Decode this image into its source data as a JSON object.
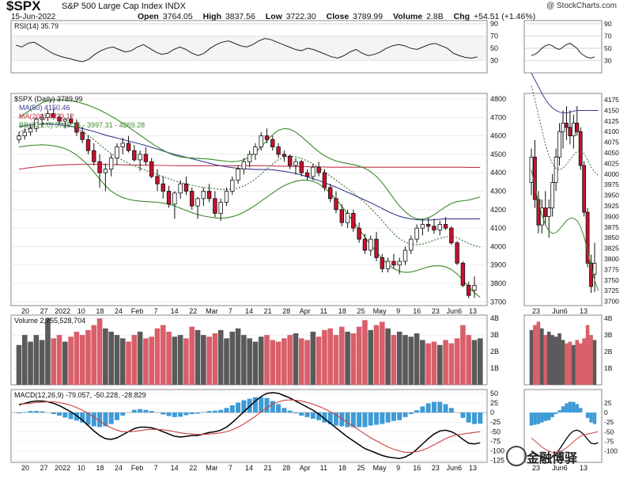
{
  "header": {
    "symbol": "$SPX",
    "name": "S&P 500 Large Cap Index  INDX",
    "credit": "@ StockCharts.com",
    "date": "15-Jun-2022",
    "open_label": "Open",
    "open": "3764.05",
    "high_label": "High",
    "high": "3837.56",
    "low_label": "Low",
    "low": "3722.30",
    "close_label": "Close",
    "close": "3789.99",
    "volume_label": "Volume",
    "volume": "2.8B",
    "chg_label": "Chg",
    "chg": "+54.51 (+1.46%)"
  },
  "watermark": "金融博驿",
  "colors": {
    "up": "#ffffff",
    "down": "#c8102e",
    "ma50": "#3b3b8f",
    "ma200": "#c0344a",
    "bb": "#3a8a2a",
    "bbmid": "#2e6e2e",
    "macd": "#000000",
    "signal": "#d04040",
    "hist": "#3d9bd6",
    "volup": "#5a5a5a",
    "voldown": "#d95f6a"
  },
  "chart_data": [
    {
      "type": "line",
      "title": "RSI(14) 35.79",
      "y_ticks": [
        30,
        50,
        70,
        90
      ],
      "ylim": [
        10,
        95
      ],
      "values": [
        55,
        52,
        58,
        60,
        54,
        48,
        42,
        38,
        35,
        33,
        30,
        28,
        32,
        40,
        46,
        50,
        52,
        48,
        44,
        46,
        52,
        56,
        50,
        44,
        40,
        42,
        48,
        52,
        48,
        42,
        38,
        42,
        50,
        56,
        60,
        62,
        58,
        54,
        52,
        56,
        62,
        66,
        64,
        60,
        56,
        52,
        48,
        46,
        50,
        48,
        44,
        40,
        36,
        34,
        38,
        44,
        48,
        42,
        38,
        40,
        44,
        50,
        54,
        56,
        54,
        50,
        48,
        52,
        56,
        58,
        54,
        50,
        42,
        38,
        35,
        34,
        36
      ]
    },
    {
      "type": "candlestick",
      "title": "$SPX (Daily) 3789.99",
      "legend": [
        "MA(50) 4150.46",
        "MA(200) 4429.12",
        "BB(20,2.0) 3725.35 - 3997.31 - 4269.28"
      ],
      "y_ticks": [
        3700,
        3750,
        3800,
        3850,
        3900,
        3950,
        4000,
        4050,
        4100,
        4150,
        4200,
        4250,
        4300,
        4350,
        4400,
        4450,
        4500,
        4550,
        4600,
        4650,
        4700,
        4750,
        4800
      ],
      "y_tick_labels": [
        "3700",
        "3800",
        "3900",
        "4000",
        "4100",
        "4200",
        "4300",
        "4400",
        "4500",
        "4600",
        "4700",
        "4800"
      ],
      "ylim": [
        3680,
        4830
      ],
      "x_labels": [
        "20",
        "27",
        "2022",
        "10",
        "18",
        "24",
        "Feb",
        "7",
        "14",
        "22",
        "Mar",
        "7",
        "14",
        "21",
        "28",
        "Apr",
        "11",
        "18",
        "25",
        "May",
        "9",
        "16",
        "23",
        "Jun6",
        "13"
      ],
      "ohlc": [
        [
          4580,
          4620,
          4560,
          4600
        ],
        [
          4600,
          4640,
          4580,
          4620
        ],
        [
          4620,
          4660,
          4600,
          4640
        ],
        [
          4640,
          4700,
          4620,
          4690
        ],
        [
          4690,
          4720,
          4650,
          4700
        ],
        [
          4700,
          4740,
          4680,
          4720
        ],
        [
          4720,
          4750,
          4690,
          4700
        ],
        [
          4700,
          4720,
          4660,
          4680
        ],
        [
          4680,
          4700,
          4640,
          4690
        ],
        [
          4690,
          4720,
          4660,
          4670
        ],
        [
          4670,
          4690,
          4600,
          4620
        ],
        [
          4620,
          4650,
          4560,
          4580
        ],
        [
          4580,
          4600,
          4500,
          4520
        ],
        [
          4520,
          4560,
          4440,
          4460
        ],
        [
          4460,
          4500,
          4320,
          4400
        ],
        [
          4400,
          4450,
          4300,
          4420
        ],
        [
          4420,
          4500,
          4380,
          4480
        ],
        [
          4480,
          4560,
          4440,
          4540
        ],
        [
          4540,
          4590,
          4500,
          4560
        ],
        [
          4560,
          4600,
          4510,
          4520
        ],
        [
          4520,
          4550,
          4460,
          4470
        ],
        [
          4470,
          4520,
          4410,
          4500
        ],
        [
          4500,
          4540,
          4440,
          4460
        ],
        [
          4460,
          4480,
          4370,
          4380
        ],
        [
          4380,
          4420,
          4300,
          4340
        ],
        [
          4340,
          4380,
          4260,
          4300
        ],
        [
          4300,
          4330,
          4210,
          4230
        ],
        [
          4230,
          4300,
          4150,
          4290
        ],
        [
          4290,
          4360,
          4260,
          4340
        ],
        [
          4340,
          4380,
          4280,
          4300
        ],
        [
          4300,
          4320,
          4200,
          4220
        ],
        [
          4220,
          4270,
          4150,
          4260
        ],
        [
          4260,
          4320,
          4220,
          4300
        ],
        [
          4300,
          4340,
          4240,
          4260
        ],
        [
          4260,
          4300,
          4160,
          4180
        ],
        [
          4180,
          4260,
          4140,
          4240
        ],
        [
          4240,
          4320,
          4220,
          4300
        ],
        [
          4300,
          4380,
          4280,
          4360
        ],
        [
          4360,
          4440,
          4340,
          4420
        ],
        [
          4420,
          4480,
          4390,
          4460
        ],
        [
          4460,
          4520,
          4430,
          4500
        ],
        [
          4500,
          4560,
          4470,
          4540
        ],
        [
          4540,
          4620,
          4520,
          4600
        ],
        [
          4600,
          4640,
          4560,
          4580
        ],
        [
          4580,
          4600,
          4520,
          4540
        ],
        [
          4540,
          4560,
          4480,
          4500
        ],
        [
          4500,
          4520,
          4460,
          4490
        ],
        [
          4490,
          4500,
          4420,
          4440
        ],
        [
          4440,
          4480,
          4390,
          4460
        ],
        [
          4460,
          4470,
          4380,
          4400
        ],
        [
          4400,
          4420,
          4360,
          4380
        ],
        [
          4380,
          4450,
          4360,
          4430
        ],
        [
          4430,
          4460,
          4380,
          4400
        ],
        [
          4400,
          4420,
          4300,
          4320
        ],
        [
          4320,
          4340,
          4240,
          4260
        ],
        [
          4260,
          4300,
          4180,
          4200
        ],
        [
          4200,
          4230,
          4110,
          4130
        ],
        [
          4130,
          4200,
          4100,
          4180
        ],
        [
          4180,
          4200,
          4080,
          4100
        ],
        [
          4100,
          4130,
          4020,
          4040
        ],
        [
          4040,
          4070,
          3960,
          3980
        ],
        [
          3980,
          4060,
          3950,
          4040
        ],
        [
          4040,
          4080,
          3920,
          3940
        ],
        [
          3940,
          3960,
          3860,
          3880
        ],
        [
          3880,
          3940,
          3860,
          3920
        ],
        [
          3920,
          3960,
          3880,
          3900
        ],
        [
          3900,
          3940,
          3850,
          3920
        ],
        [
          3920,
          4000,
          3900,
          3980
        ],
        [
          3980,
          4060,
          3960,
          4040
        ],
        [
          4040,
          4120,
          4020,
          4100
        ],
        [
          4100,
          4150,
          4060,
          4120
        ],
        [
          4120,
          4160,
          4080,
          4110
        ],
        [
          4110,
          4150,
          4070,
          4090
        ],
        [
          4090,
          4140,
          4060,
          4120
        ],
        [
          4120,
          4160,
          4090,
          4100
        ],
        [
          4100,
          4110,
          4010,
          4020
        ],
        [
          4020,
          4030,
          3900,
          3910
        ],
        [
          3910,
          3920,
          3780,
          3790
        ],
        [
          3790,
          3810,
          3720,
          3735
        ],
        [
          3764,
          3838,
          3722,
          3790
        ]
      ],
      "ma50": [
        4650,
        4655,
        4660,
        4662,
        4664,
        4664,
        4662,
        4660,
        4656,
        4652,
        4646,
        4640,
        4632,
        4624,
        4614,
        4604,
        4596,
        4588,
        4580,
        4572,
        4564,
        4556,
        4548,
        4538,
        4528,
        4518,
        4508,
        4500,
        4492,
        4484,
        4476,
        4468,
        4460,
        4452,
        4444,
        4438,
        4432,
        4428,
        4424,
        4422,
        4420,
        4418,
        4418,
        4418,
        4416,
        4412,
        4408,
        4402,
        4396,
        4388,
        4378,
        4368,
        4358,
        4346,
        4334,
        4322,
        4308,
        4294,
        4280,
        4266,
        4252,
        4238,
        4222,
        4206,
        4190,
        4176,
        4164,
        4156,
        4150,
        4146,
        4144,
        4144,
        4146,
        4148,
        4150,
        4150,
        4150,
        4150,
        4150,
        4150,
        4150
      ],
      "ma200": [
        4420,
        4424,
        4428,
        4432,
        4436,
        4438,
        4440,
        4442,
        4443,
        4444,
        4445,
        4446,
        4446,
        4446,
        4446,
        4445,
        4444,
        4444,
        4443,
        4442,
        4442,
        4442,
        4441,
        4440,
        4440,
        4440,
        4439,
        4439,
        4438,
        4438,
        4438,
        4438,
        4438,
        4438,
        4438,
        4438,
        4438,
        4438,
        4438,
        4438,
        4438,
        4438,
        4438,
        4438,
        4437,
        4436,
        4436,
        4435,
        4434,
        4434,
        4433,
        4432,
        4432,
        4431,
        4430,
        4430,
        4430,
        4430,
        4430,
        4430,
        4430,
        4430,
        4430,
        4430,
        4430,
        4430,
        4430,
        4430,
        4430,
        4430,
        4430,
        4430,
        4430,
        4430,
        4430,
        4430,
        4430,
        4430,
        4429,
        4429,
        4429
      ],
      "bb_upper": [
        4700,
        4720,
        4740,
        4760,
        4780,
        4790,
        4795,
        4796,
        4794,
        4790,
        4784,
        4776,
        4766,
        4754,
        4740,
        4724,
        4706,
        4688,
        4668,
        4648,
        4626,
        4604,
        4582,
        4560,
        4540,
        4522,
        4506,
        4494,
        4486,
        4482,
        4480,
        4478,
        4476,
        4474,
        4470,
        4466,
        4462,
        4460,
        4462,
        4470,
        4486,
        4510,
        4540,
        4574,
        4606,
        4630,
        4640,
        4636,
        4620,
        4596,
        4568,
        4540,
        4514,
        4492,
        4476,
        4464,
        4456,
        4450,
        4444,
        4436,
        4424,
        4406,
        4380,
        4346,
        4304,
        4260,
        4220,
        4188,
        4164,
        4150,
        4148,
        4156,
        4172,
        4194,
        4216,
        4234,
        4244,
        4248,
        4252,
        4260,
        4269
      ],
      "bb_lower": [
        4540,
        4544,
        4548,
        4550,
        4552,
        4550,
        4546,
        4540,
        4530,
        4516,
        4496,
        4470,
        4440,
        4404,
        4366,
        4330,
        4300,
        4280,
        4266,
        4256,
        4250,
        4246,
        4244,
        4242,
        4240,
        4236,
        4230,
        4220,
        4208,
        4196,
        4184,
        4174,
        4166,
        4160,
        4156,
        4154,
        4156,
        4162,
        4172,
        4186,
        4204,
        4224,
        4246,
        4268,
        4290,
        4312,
        4330,
        4344,
        4354,
        4360,
        4360,
        4354,
        4340,
        4318,
        4290,
        4256,
        4218,
        4178,
        4136,
        4094,
        4052,
        4010,
        3970,
        3934,
        3904,
        3880,
        3866,
        3860,
        3862,
        3870,
        3880,
        3890,
        3896,
        3896,
        3890,
        3876,
        3852,
        3818,
        3782,
        3750,
        3725
      ]
    },
    {
      "type": "bar",
      "title": "Volume 2,755,528,704",
      "y_tick_labels": [
        "1B",
        "2B",
        "3B",
        "4B"
      ],
      "ylim": [
        0,
        4.2
      ],
      "values": [
        2.4,
        3.0,
        2.6,
        3.0,
        2.7,
        4.0,
        2.8,
        3.0,
        2.6,
        2.9,
        3.2,
        3.0,
        3.3,
        3.6,
        4.0,
        3.4,
        3.2,
        3.0,
        2.8,
        2.6,
        3.0,
        3.2,
        2.8,
        2.9,
        3.4,
        3.6,
        3.2,
        2.9,
        3.0,
        2.8,
        3.5,
        3.3,
        3.0,
        2.9,
        3.1,
        3.3,
        2.8,
        3.2,
        3.4,
        3.0,
        2.8,
        2.6,
        2.9,
        3.0,
        2.7,
        2.6,
        2.8,
        3.0,
        3.1,
        2.8,
        2.7,
        3.2,
        2.9,
        3.3,
        3.4,
        3.0,
        3.5,
        3.2,
        3.1,
        3.5,
        3.9,
        3.3,
        3.6,
        3.8,
        3.4,
        3.0,
        3.2,
        3.0,
        2.9,
        3.1,
        2.7,
        2.5,
        2.6,
        2.4,
        2.7,
        2.5,
        2.8,
        3.6,
        3.0,
        2.7,
        2.8
      ]
    },
    {
      "type": "line",
      "title": "MACD(12,26,9) -79.057, -50.228, -28.829",
      "y_tick_labels": [
        "-125",
        "-100",
        "-75",
        "-50",
        "-25",
        "0",
        "25",
        "50"
      ],
      "ylim": [
        -130,
        60
      ],
      "macd": [
        20,
        24,
        28,
        30,
        30,
        28,
        24,
        18,
        10,
        2,
        -8,
        -20,
        -34,
        -48,
        -60,
        -68,
        -70,
        -66,
        -58,
        -50,
        -42,
        -38,
        -38,
        -40,
        -44,
        -50,
        -56,
        -62,
        -64,
        -62,
        -60,
        -60,
        -56,
        -52,
        -50,
        -46,
        -38,
        -26,
        -12,
        2,
        16,
        30,
        42,
        50,
        52,
        50,
        44,
        38,
        30,
        22,
        14,
        6,
        -4,
        -16,
        -28,
        -40,
        -52,
        -64,
        -74,
        -84,
        -94,
        -100,
        -106,
        -112,
        -116,
        -118,
        -120,
        -116,
        -108,
        -96,
        -82,
        -68,
        -56,
        -48,
        -46,
        -50,
        -58,
        -70,
        -80,
        -82,
        -79
      ],
      "signal": [
        22,
        23,
        24,
        26,
        27,
        28,
        28,
        26,
        23,
        19,
        13,
        6,
        -2,
        -12,
        -22,
        -32,
        -40,
        -46,
        -50,
        -50,
        -49,
        -47,
        -45,
        -44,
        -44,
        -45,
        -47,
        -50,
        -53,
        -55,
        -56,
        -57,
        -57,
        -56,
        -55,
        -53,
        -50,
        -45,
        -38,
        -30,
        -20,
        -10,
        2,
        12,
        22,
        28,
        32,
        33,
        32,
        30,
        26,
        22,
        16,
        10,
        2,
        -6,
        -16,
        -26,
        -36,
        -46,
        -56,
        -66,
        -74,
        -82,
        -90,
        -96,
        -100,
        -104,
        -104,
        -102,
        -98,
        -92,
        -84,
        -76,
        -68,
        -62,
        -58,
        -56,
        -54,
        -52,
        -50
      ]
    }
  ],
  "inset": {
    "x_labels": [
      "23",
      "Jun6",
      "13"
    ],
    "price_tick_labels": [
      "3700",
      "3725",
      "3750",
      "3775",
      "3800",
      "3825",
      "3850",
      "3875",
      "3900",
      "3925",
      "3950",
      "3975",
      "4000",
      "4025",
      "4050",
      "4075",
      "4100",
      "4125",
      "4150",
      "4175"
    ],
    "macd_tick_labels": [
      "-100",
      "-75",
      "-50",
      "-25",
      "0",
      "25"
    ],
    "rsi_tick_labels": [
      "30",
      "50",
      "70",
      "90"
    ],
    "vol_tick_labels": [
      "1B",
      "2B",
      "3B",
      "4B"
    ]
  }
}
